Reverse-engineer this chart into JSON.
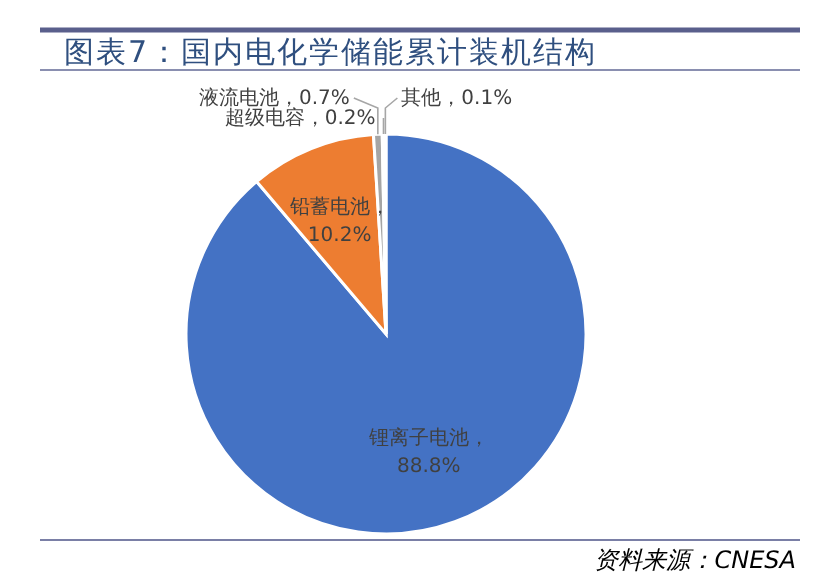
{
  "chart_data": {
    "type": "pie",
    "title": "图表7：国内电化学储能累计装机结构",
    "categories": [
      "锂离子电池",
      "铅蓄电池",
      "液流电池",
      "超级电容",
      "其他"
    ],
    "values": [
      88.8,
      10.2,
      0.7,
      0.2,
      0.1
    ],
    "colors": [
      "#4472c4",
      "#ed7d31",
      "#a5a5a5",
      "#ffc000",
      "#5b9bd5"
    ],
    "value_labels": [
      "，88.8%",
      "，10.2%",
      "，0.7%",
      "，0.2%",
      "，0.1%"
    ],
    "annotations": [
      "资料来源：CNESA"
    ]
  }
}
